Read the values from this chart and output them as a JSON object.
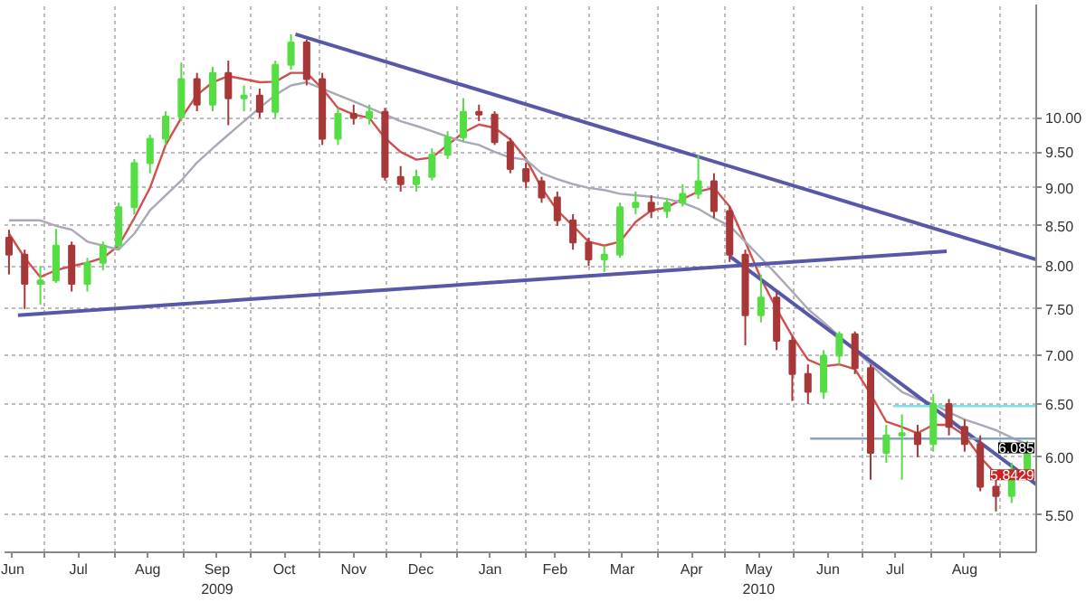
{
  "chart_data": {
    "type": "candlestick",
    "log": "y",
    "grid": true,
    "x": [
      "2009-06-15",
      "2009-06-22",
      "2009-06-29",
      "2009-07-06",
      "2009-07-13",
      "2009-07-20",
      "2009-07-27",
      "2009-08-03",
      "2009-08-10",
      "2009-08-17",
      "2009-08-24",
      "2009-08-31",
      "2009-09-07",
      "2009-09-14",
      "2009-09-21",
      "2009-09-28",
      "2009-10-05",
      "2009-10-12",
      "2009-10-19",
      "2009-10-26",
      "2009-11-02",
      "2009-11-09",
      "2009-11-16",
      "2009-11-23",
      "2009-11-30",
      "2009-12-07",
      "2009-12-14",
      "2009-12-21",
      "2009-12-28",
      "2010-01-04",
      "2010-01-11",
      "2010-01-18",
      "2010-01-25",
      "2010-02-01",
      "2010-02-08",
      "2010-02-15",
      "2010-02-22",
      "2010-03-01",
      "2010-03-08",
      "2010-03-15",
      "2010-03-22",
      "2010-03-29",
      "2010-04-05",
      "2010-04-12",
      "2010-04-19",
      "2010-04-26",
      "2010-05-03",
      "2010-05-10",
      "2010-05-17",
      "2010-05-24",
      "2010-05-31",
      "2010-06-07",
      "2010-06-14",
      "2010-06-21",
      "2010-06-28",
      "2010-07-05",
      "2010-07-12",
      "2010-07-19",
      "2010-07-26",
      "2010-08-02",
      "2010-08-09",
      "2010-08-16",
      "2010-08-23",
      "2010-08-30",
      "2010-09-06",
      "2010-09-13"
    ],
    "ohlc": [
      [
        8.35,
        8.45,
        7.9,
        8.14
      ],
      [
        8.14,
        8.2,
        7.5,
        7.79
      ],
      [
        7.79,
        8.0,
        7.55,
        7.83
      ],
      [
        7.83,
        8.46,
        7.8,
        8.25
      ],
      [
        8.25,
        8.3,
        7.7,
        7.79
      ],
      [
        7.79,
        8.1,
        7.7,
        8.04
      ],
      [
        8.04,
        8.3,
        7.95,
        8.25
      ],
      [
        8.25,
        8.8,
        8.2,
        8.74
      ],
      [
        8.74,
        9.4,
        8.65,
        9.34
      ],
      [
        9.34,
        9.75,
        9.2,
        9.69
      ],
      [
        9.69,
        10.1,
        9.6,
        10.02
      ],
      [
        10.02,
        10.87,
        9.95,
        10.6
      ],
      [
        10.6,
        10.7,
        10.1,
        10.2
      ],
      [
        10.2,
        10.8,
        10.1,
        10.7
      ],
      [
        10.7,
        10.9,
        9.89,
        10.3
      ],
      [
        10.3,
        10.5,
        10.1,
        10.34
      ],
      [
        10.34,
        10.45,
        10.0,
        10.09
      ],
      [
        10.09,
        10.9,
        10.0,
        10.83
      ],
      [
        10.83,
        11.34,
        10.75,
        11.2
      ],
      [
        11.2,
        11.25,
        10.5,
        10.6
      ],
      [
        10.6,
        10.7,
        9.6,
        9.69
      ],
      [
        9.69,
        10.15,
        9.6,
        10.06
      ],
      [
        10.06,
        10.2,
        9.9,
        10.0
      ],
      [
        10.0,
        10.2,
        9.9,
        10.09
      ],
      [
        10.09,
        10.15,
        9.1,
        9.15
      ],
      [
        9.15,
        9.3,
        8.95,
        9.05
      ],
      [
        9.05,
        9.25,
        8.95,
        9.15
      ],
      [
        9.15,
        9.55,
        9.1,
        9.46
      ],
      [
        9.46,
        9.8,
        9.4,
        9.71
      ],
      [
        9.71,
        10.3,
        9.65,
        10.09
      ],
      [
        10.09,
        10.2,
        9.95,
        10.05
      ],
      [
        10.05,
        10.1,
        9.6,
        9.64
      ],
      [
        9.64,
        9.7,
        9.2,
        9.26
      ],
      [
        9.26,
        9.35,
        9.0,
        9.09
      ],
      [
        9.09,
        9.15,
        8.8,
        8.87
      ],
      [
        8.87,
        8.95,
        8.5,
        8.57
      ],
      [
        8.57,
        8.65,
        8.2,
        8.29
      ],
      [
        8.29,
        8.35,
        8.0,
        8.08
      ],
      [
        8.08,
        8.25,
        7.93,
        8.14
      ],
      [
        8.14,
        8.8,
        8.1,
        8.74
      ],
      [
        8.74,
        8.95,
        8.65,
        8.8
      ],
      [
        8.8,
        8.9,
        8.6,
        8.69
      ],
      [
        8.69,
        8.85,
        8.6,
        8.8
      ],
      [
        8.8,
        9.05,
        8.75,
        8.92
      ],
      [
        8.92,
        9.45,
        8.85,
        9.09
      ],
      [
        9.09,
        9.2,
        8.6,
        8.69
      ],
      [
        8.69,
        8.75,
        8.05,
        8.14
      ],
      [
        8.14,
        8.2,
        7.1,
        7.43
      ],
      [
        7.43,
        7.9,
        7.35,
        7.63
      ],
      [
        7.63,
        7.7,
        7.05,
        7.15
      ],
      [
        7.15,
        7.2,
        6.53,
        6.8
      ],
      [
        6.8,
        6.9,
        6.5,
        6.62
      ],
      [
        6.62,
        7.05,
        6.55,
        6.99
      ],
      [
        6.99,
        7.25,
        6.9,
        7.22
      ],
      [
        7.22,
        7.25,
        6.8,
        6.86
      ],
      [
        6.86,
        6.9,
        5.8,
        6.04
      ],
      [
        6.04,
        6.3,
        5.95,
        6.2
      ],
      [
        6.2,
        6.4,
        5.8,
        6.22
      ],
      [
        6.22,
        6.3,
        6.0,
        6.12
      ],
      [
        6.12,
        6.6,
        6.05,
        6.5
      ],
      [
        6.5,
        6.55,
        6.2,
        6.28
      ],
      [
        6.28,
        6.35,
        6.05,
        6.12
      ],
      [
        6.12,
        6.2,
        5.7,
        5.74
      ],
      [
        5.74,
        5.8,
        5.53,
        5.66
      ],
      [
        5.66,
        5.95,
        5.6,
        5.89
      ],
      [
        5.89,
        6.15,
        5.85,
        6.085
      ]
    ],
    "series": [
      {
        "type": "line",
        "color": "#d05050",
        "values": [
          8.4,
          8.1,
          7.87,
          7.95,
          8.0,
          8.04,
          8.1,
          8.25,
          8.6,
          9.0,
          9.6,
          10.0,
          10.35,
          10.55,
          10.65,
          10.6,
          10.55,
          10.56,
          10.7,
          10.7,
          10.45,
          10.15,
          10.05,
          10.0,
          9.7,
          9.5,
          9.39,
          9.42,
          9.6,
          9.78,
          9.9,
          9.85,
          9.68,
          9.4,
          9.0,
          8.7,
          8.5,
          8.3,
          8.25,
          8.3,
          8.55,
          8.7,
          8.74,
          8.85,
          8.95,
          9.0,
          8.75,
          8.3,
          7.85,
          7.5,
          7.2,
          6.95,
          6.88,
          6.9,
          6.85,
          6.6,
          6.33,
          6.28,
          6.22,
          6.3,
          6.3,
          6.2,
          6.0,
          5.85,
          5.8,
          5.8429
        ]
      },
      {
        "type": "line",
        "color": "#a8a8b8",
        "values": [
          8.57,
          8.57,
          8.57,
          8.5,
          8.45,
          8.3,
          8.25,
          8.2,
          8.4,
          8.7,
          8.9,
          9.1,
          9.35,
          9.55,
          9.75,
          9.95,
          10.15,
          10.35,
          10.5,
          10.55,
          10.45,
          10.35,
          10.25,
          10.15,
          10.05,
          9.95,
          9.88,
          9.8,
          9.72,
          9.65,
          9.6,
          9.5,
          9.42,
          9.39,
          9.2,
          9.12,
          9.05,
          9.0,
          8.97,
          8.92,
          8.9,
          8.88,
          8.85,
          8.8,
          8.72,
          8.6,
          8.5,
          8.3,
          8.1,
          7.9,
          7.7,
          7.5,
          7.35,
          7.2,
          7.05,
          6.9,
          6.75,
          6.62,
          6.55,
          6.5,
          6.42,
          6.35,
          6.3,
          6.25,
          6.18,
          6.12
        ]
      },
      {
        "type": "line",
        "color": "#5858a8",
        "x": [
          "2009-10-21",
          "2010-09-17"
        ],
        "values": [
          11.34,
          8.08
        ]
      },
      {
        "type": "line",
        "color": "#5858a8",
        "x": [
          "2009-06-19",
          "2010-08-08"
        ],
        "values": [
          7.43,
          8.18
        ]
      },
      {
        "type": "line",
        "color": "#5858a8",
        "x": [
          "2010-05-03",
          "2010-09-17"
        ],
        "values": [
          8.12,
          5.76
        ]
      },
      {
        "type": "line",
        "color": "#80e0e0",
        "x": [
          "2010-07-15",
          "2010-09-17"
        ],
        "values": [
          6.48,
          6.48
        ]
      },
      {
        "type": "line",
        "color": "#8aa0b8",
        "x": [
          "2010-06-08",
          "2010-09-17"
        ],
        "values": [
          6.17,
          6.17
        ]
      }
    ],
    "xlim": [
      "2009-06-13",
      "2010-09-17"
    ],
    "xticks": [
      {
        "value": "2009-06-16",
        "label": "Jun"
      },
      {
        "value": "2009-07-01",
        "label": null
      },
      {
        "value": "2009-07-16",
        "label": "Jul"
      },
      {
        "value": "2009-08-01",
        "label": null
      },
      {
        "value": "2009-08-16",
        "label": "Aug"
      },
      {
        "value": "2009-09-01",
        "label": null
      },
      {
        "value": "2009-09-16",
        "label": "Sep\n2009"
      },
      {
        "value": "2009-10-01",
        "label": null
      },
      {
        "value": "2009-10-16",
        "label": "Oct"
      },
      {
        "value": "2009-11-01",
        "label": null
      },
      {
        "value": "2009-11-16",
        "label": "Nov"
      },
      {
        "value": "2009-12-01",
        "label": null
      },
      {
        "value": "2009-12-16",
        "label": "Dec"
      },
      {
        "value": "2010-01-01",
        "label": null
      },
      {
        "value": "2010-01-16",
        "label": "Jan"
      },
      {
        "value": "2010-02-01",
        "label": null
      },
      {
        "value": "2010-02-14",
        "label": "Feb"
      },
      {
        "value": "2010-03-01",
        "label": null
      },
      {
        "value": "2010-03-16",
        "label": "Mar"
      },
      {
        "value": "2010-04-01",
        "label": null
      },
      {
        "value": "2010-04-16",
        "label": "Apr"
      },
      {
        "value": "2010-05-01",
        "label": null
      },
      {
        "value": "2010-05-16",
        "label": "May\n2010"
      },
      {
        "value": "2010-06-01",
        "label": null
      },
      {
        "value": "2010-06-16",
        "label": "Jun"
      },
      {
        "value": "2010-07-01",
        "label": null
      },
      {
        "value": "2010-07-16",
        "label": "Jul"
      },
      {
        "value": "2010-08-01",
        "label": null
      },
      {
        "value": "2010-08-16",
        "label": "Aug"
      },
      {
        "value": "2010-09-01",
        "label": null
      }
    ],
    "ylim": [
      5.2,
      11.86
    ],
    "yticks": [
      {
        "value": 5.5,
        "label": "5.50"
      },
      {
        "value": 6.0,
        "label": "6.00"
      },
      {
        "value": 6.5,
        "label": "6.50"
      },
      {
        "value": 7.0,
        "label": "7.00"
      },
      {
        "value": 7.5,
        "label": "7.50"
      },
      {
        "value": 8.0,
        "label": "8.00"
      },
      {
        "value": 8.5,
        "label": "8.50"
      },
      {
        "value": 9.0,
        "label": "9.00"
      },
      {
        "value": 9.5,
        "label": "9.50"
      },
      {
        "value": 10.0,
        "label": "10.00"
      }
    ],
    "annotations": [
      {
        "text": "6.085",
        "x": "2010-09-17",
        "y": 6.085
      },
      {
        "text": "5.8429",
        "x": "2010-09-17",
        "y": 5.8429
      }
    ]
  }
}
